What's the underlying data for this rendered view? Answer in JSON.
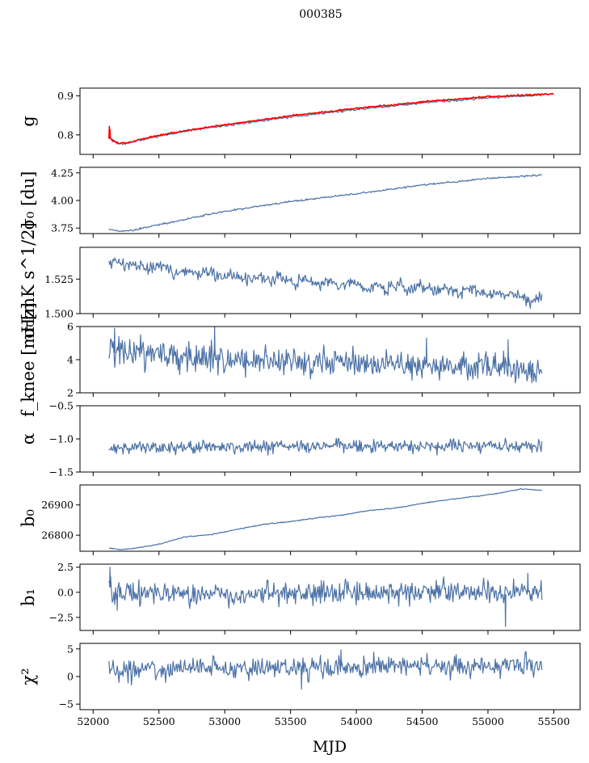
{
  "figure": {
    "suptitle": "000385"
  },
  "colors": {
    "series": "#4c72a6",
    "overlay": "#ff0000",
    "axes": "#000000"
  },
  "chart_data": {
    "type": "line",
    "xlabel": "MJD",
    "xlim": [
      51900,
      55700
    ],
    "xticks": [
      52000,
      52500,
      53000,
      53500,
      54000,
      54500,
      55000,
      55500
    ],
    "x_range_data": [
      52120,
      55410
    ],
    "panels": [
      {
        "ylabel": "g",
        "ylim": [
          0.75,
          0.92
        ],
        "yticks": [
          {
            "v": 0.8,
            "label": "0.8"
          },
          {
            "v": 0.9,
            "label": "0.9"
          }
        ],
        "series": [
          {
            "role": "main",
            "color": "#4c72a6",
            "points": [
              [
                52120,
                0.795
              ],
              [
                52150,
                0.783
              ],
              [
                52200,
                0.777
              ],
              [
                52250,
                0.778
              ],
              [
                52350,
                0.786
              ],
              [
                52500,
                0.797
              ],
              [
                52700,
                0.809
              ],
              [
                53000,
                0.824
              ],
              [
                53500,
                0.846
              ],
              [
                54000,
                0.865
              ],
              [
                54500,
                0.882
              ],
              [
                55000,
                0.895
              ],
              [
                55410,
                0.902
              ]
            ],
            "noise": 0.0015
          },
          {
            "role": "overlay",
            "color": "#ff0000",
            "points": [
              [
                52120,
                0.797
              ],
              [
                52150,
                0.784
              ],
              [
                52200,
                0.778
              ],
              [
                52250,
                0.779
              ],
              [
                52350,
                0.788
              ],
              [
                52500,
                0.799
              ],
              [
                52700,
                0.811
              ],
              [
                53000,
                0.826
              ],
              [
                53500,
                0.849
              ],
              [
                54000,
                0.868
              ],
              [
                54500,
                0.885
              ],
              [
                55000,
                0.898
              ],
              [
                55500,
                0.905
              ]
            ],
            "noise": 0.001,
            "spikes": [
              [
                52120,
                0.822,
                0.79
              ],
              [
                52125,
                0.814,
                0.79
              ]
            ]
          }
        ]
      },
      {
        "ylabel": "σ₀ [du]",
        "ylim": [
          3.7,
          4.3
        ],
        "yticks": [
          {
            "v": 3.75,
            "label": "3.75"
          },
          {
            "v": 4.0,
            "label": "4.00"
          },
          {
            "v": 4.25,
            "label": "4.25"
          }
        ],
        "series": [
          {
            "role": "main",
            "color": "#4c72a6",
            "points": [
              [
                52120,
                3.74
              ],
              [
                52200,
                3.72
              ],
              [
                52300,
                3.73
              ],
              [
                52500,
                3.78
              ],
              [
                52700,
                3.83
              ],
              [
                53000,
                3.9
              ],
              [
                53500,
                3.99
              ],
              [
                54000,
                4.06
              ],
              [
                54500,
                4.14
              ],
              [
                55000,
                4.2
              ],
              [
                55410,
                4.23
              ]
            ],
            "noise": 0.004
          }
        ]
      },
      {
        "ylabel": "σ₀[mK s^1/2]",
        "ylim": [
          1.5,
          1.548
        ],
        "yticks": [
          {
            "v": 1.5,
            "label": "1.500"
          },
          {
            "v": 1.525,
            "label": "1.525"
          }
        ],
        "series": [
          {
            "role": "main",
            "color": "#4c72a6",
            "points": [
              [
                52120,
                1.537
              ],
              [
                52300,
                1.535
              ],
              [
                52600,
                1.531
              ],
              [
                53000,
                1.527
              ],
              [
                53500,
                1.524
              ],
              [
                54000,
                1.521
              ],
              [
                54500,
                1.518
              ],
              [
                55000,
                1.515
              ],
              [
                55410,
                1.51
              ]
            ],
            "noise": 0.0022,
            "wave": 0.0025
          }
        ]
      },
      {
        "ylabel": "f_knee [mHz]",
        "ylim": [
          2,
          6
        ],
        "yticks": [
          {
            "v": 2,
            "label": "2"
          },
          {
            "v": 4,
            "label": "4"
          },
          {
            "v": 6,
            "label": "6"
          }
        ],
        "series": [
          {
            "role": "main",
            "color": "#4c72a6",
            "points": [
              [
                52120,
                4.6
              ],
              [
                52500,
                4.3
              ],
              [
                53000,
                4.0
              ],
              [
                53500,
                3.9
              ],
              [
                54000,
                3.8
              ],
              [
                54500,
                3.7
              ],
              [
                55000,
                3.6
              ],
              [
                55410,
                3.4
              ]
            ],
            "noise": 0.45,
            "spikes": [
              [
                52160,
                5.9,
                4.4
              ],
              [
                52920,
                6.0,
                4.2
              ],
              [
                54530,
                5.3,
                3.8
              ],
              [
                55150,
                5.2,
                3.6
              ],
              [
                55330,
                2.6,
                3.4
              ]
            ]
          }
        ]
      },
      {
        "ylabel": "α",
        "ylim": [
          -1.5,
          -0.5
        ],
        "yticks": [
          {
            "v": -1.5,
            "label": "−1.5"
          },
          {
            "v": -1.0,
            "label": "−1.0"
          },
          {
            "v": -0.5,
            "label": "−0.5"
          }
        ],
        "series": [
          {
            "role": "main",
            "color": "#4c72a6",
            "points": [
              [
                52120,
                -1.13
              ],
              [
                53000,
                -1.12
              ],
              [
                54000,
                -1.11
              ],
              [
                55000,
                -1.1
              ],
              [
                55410,
                -1.11
              ]
            ],
            "noise": 0.05
          }
        ]
      },
      {
        "ylabel": "b₀",
        "ylim": [
          26747,
          26966
        ],
        "yticks": [
          {
            "v": 26800,
            "label": "26800"
          },
          {
            "v": 26900,
            "label": "26900"
          }
        ],
        "series": [
          {
            "role": "main",
            "color": "#4c72a6",
            "points": [
              [
                52120,
                26757
              ],
              [
                52200,
                26752
              ],
              [
                52300,
                26756
              ],
              [
                52500,
                26770
              ],
              [
                52700,
                26795
              ],
              [
                52900,
                26802
              ],
              [
                53100,
                26820
              ],
              [
                53300,
                26836
              ],
              [
                53500,
                26845
              ],
              [
                53700,
                26857
              ],
              [
                53900,
                26867
              ],
              [
                54100,
                26882
              ],
              [
                54300,
                26890
              ],
              [
                54500,
                26905
              ],
              [
                54700,
                26918
              ],
              [
                54900,
                26928
              ],
              [
                55100,
                26940
              ],
              [
                55250,
                26953
              ],
              [
                55350,
                26950
              ],
              [
                55410,
                26948
              ]
            ],
            "noise": 0.8
          }
        ]
      },
      {
        "ylabel": "b₁",
        "ylim": [
          -3.8,
          2.8
        ],
        "yticks": [
          {
            "v": -2.5,
            "label": "−2.5"
          },
          {
            "v": 0.0,
            "label": "0.0"
          },
          {
            "v": 2.5,
            "label": "2.5"
          }
        ],
        "series": [
          {
            "role": "main",
            "color": "#4c72a6",
            "points": [
              [
                52120,
                1.5
              ],
              [
                52140,
                -0.1
              ],
              [
                53000,
                -0.1
              ],
              [
                54000,
                0.0
              ],
              [
                55000,
                0.0
              ],
              [
                55410,
                0.0
              ]
            ],
            "noise": 0.55,
            "spikes": [
              [
                52125,
                2.5,
                0.5
              ],
              [
                52180,
                -1.8,
                -0.2
              ],
              [
                55130,
                -3.4,
                -0.2
              ],
              [
                55300,
                1.9,
                0.0
              ]
            ]
          }
        ]
      },
      {
        "ylabel": "χ²",
        "ylim": [
          -6,
          6
        ],
        "yticks": [
          {
            "v": -5,
            "label": "−5"
          },
          {
            "v": 0,
            "label": "0"
          },
          {
            "v": 5,
            "label": "5"
          }
        ],
        "series": [
          {
            "role": "main",
            "color": "#4c72a6",
            "points": [
              [
                52120,
                1.2
              ],
              [
                53000,
                1.6
              ],
              [
                54000,
                1.7
              ],
              [
                55000,
                1.9
              ],
              [
                55410,
                2.0
              ]
            ],
            "noise": 0.95,
            "spikes": [
              [
                53880,
                4.8,
                2.0
              ],
              [
                53580,
                -2.3,
                1.5
              ]
            ]
          }
        ]
      }
    ]
  }
}
